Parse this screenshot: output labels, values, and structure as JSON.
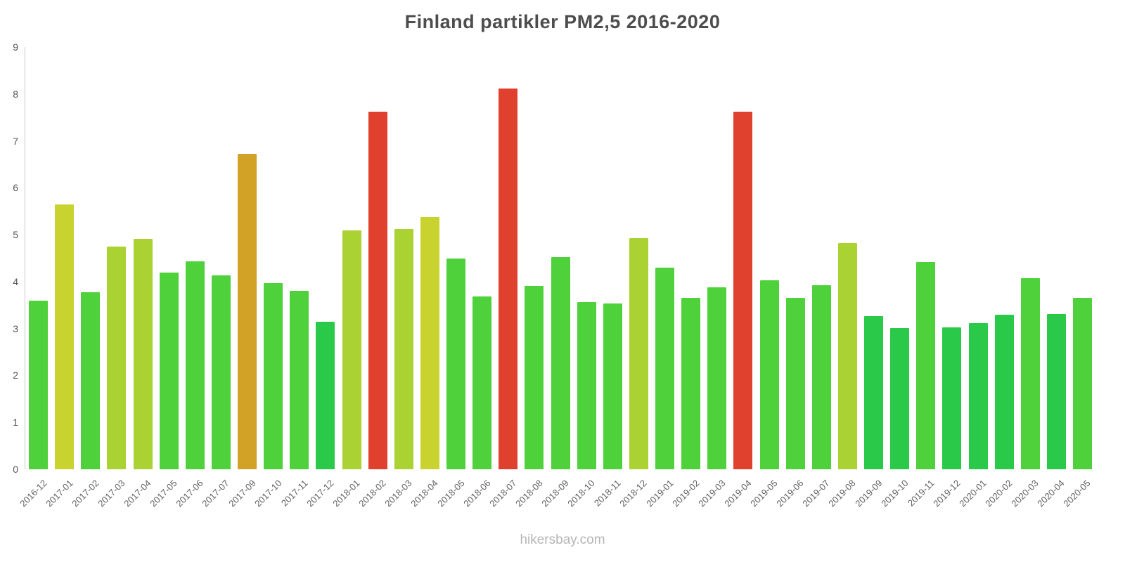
{
  "title": "Finland partikler PM2,5 2016-2020",
  "footer": "hikersbay.com",
  "colors": {
    "axis": "#cccccc",
    "tick_label": "#555555",
    "x_label": "#606060",
    "title": "#4d4d4d",
    "footer": "#b5b5b5",
    "background": "#ffffff"
  },
  "chart_data": {
    "type": "bar",
    "title": "Finland partikler PM2,5 2016-2020",
    "xlabel": "",
    "ylabel": "",
    "ylim": [
      0,
      9
    ],
    "yticks": [
      0,
      1,
      2,
      3,
      4,
      5,
      6,
      7,
      8,
      9
    ],
    "grid": false,
    "legend": false,
    "categories": [
      "2016-12",
      "2017-01",
      "2017-02",
      "2017-03",
      "2017-04",
      "2017-05",
      "2017-06",
      "2017-07",
      "2017-09",
      "2017-10",
      "2017-11",
      "2017-12",
      "2018-01",
      "2018-02",
      "2018-03",
      "2018-04",
      "2018-05",
      "2018-06",
      "2018-07",
      "2018-08",
      "2018-09",
      "2018-10",
      "2018-11",
      "2018-12",
      "2019-01",
      "2019-02",
      "2019-03",
      "2019-04",
      "2019-05",
      "2019-06",
      "2019-07",
      "2019-08",
      "2019-09",
      "2019-10",
      "2019-11",
      "2019-12",
      "2020-01",
      "2020-02",
      "2020-03",
      "2020-04",
      "2020-05"
    ],
    "values": [
      3.6,
      5.65,
      3.78,
      4.75,
      4.91,
      4.19,
      4.44,
      4.14,
      6.73,
      3.97,
      3.8,
      3.15,
      5.09,
      7.62,
      5.12,
      5.38,
      4.49,
      3.68,
      8.11,
      3.91,
      4.53,
      3.57,
      3.54,
      4.93,
      4.3,
      3.65,
      3.88,
      7.63,
      4.03,
      3.65,
      3.93,
      4.82,
      3.27,
      3.01,
      4.42,
      3.03,
      3.12,
      3.3,
      4.07,
      3.31,
      3.66
    ],
    "bar_colors": [
      "#4ed13a",
      "#c9d32f",
      "#4ed13a",
      "#aad233",
      "#aad233",
      "#4ed13a",
      "#4ed13a",
      "#4ed13a",
      "#d2a227",
      "#4ed13a",
      "#4ed13a",
      "#2bc94a",
      "#aad233",
      "#e0412e",
      "#aad233",
      "#c9d32f",
      "#4ed13a",
      "#4ed13a",
      "#e0412e",
      "#4ed13a",
      "#4ed13a",
      "#4ed13a",
      "#4ed13a",
      "#aad233",
      "#4ed13a",
      "#4ed13a",
      "#4ed13a",
      "#e0412e",
      "#4ed13a",
      "#4ed13a",
      "#4ed13a",
      "#aad233",
      "#2bc94a",
      "#2bc94a",
      "#4ed13a",
      "#2bc94a",
      "#2bc94a",
      "#2bc94a",
      "#4ed13a",
      "#2bc94a",
      "#4ed13a"
    ]
  }
}
